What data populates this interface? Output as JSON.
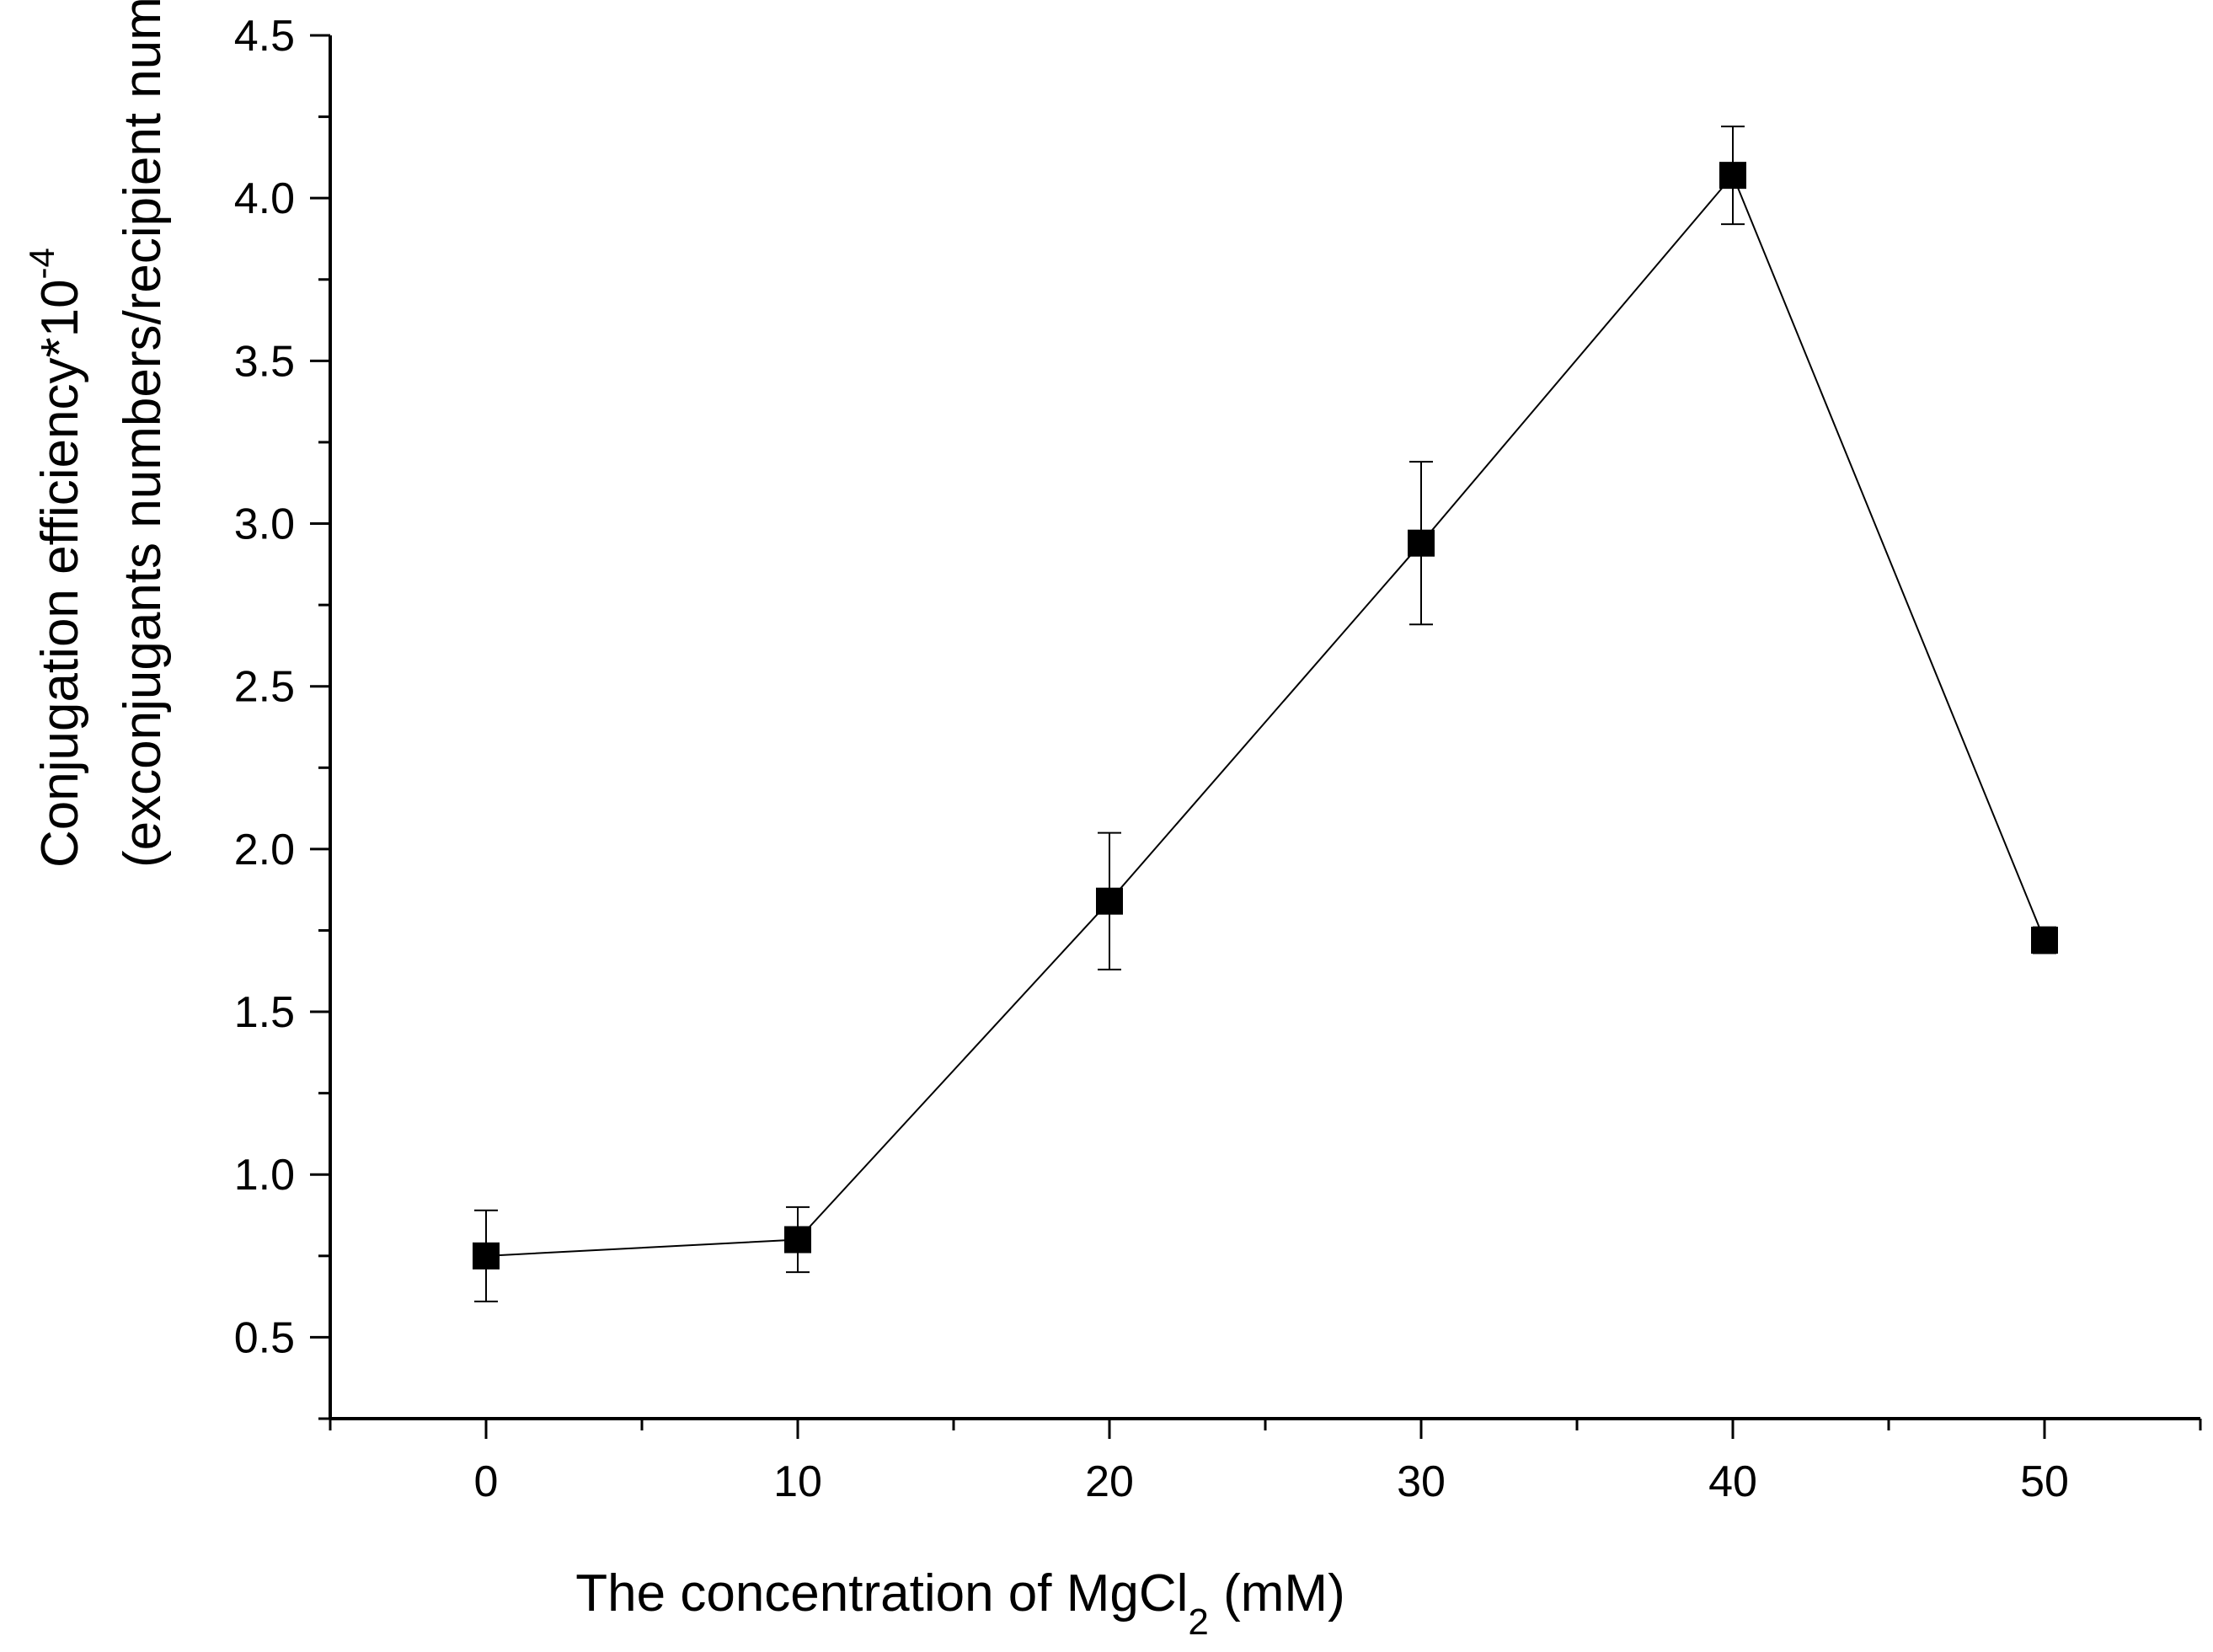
{
  "chart_data": {
    "type": "line",
    "title": "",
    "xlabel": {
      "main": "The concentration of MgCl",
      "subscript": "2",
      "suffix": " (mM)"
    },
    "ylabel": {
      "line1_main": "Conjugation efficiency*10",
      "line1_superscript": "-4",
      "line2": "(exconjugants numbers/recipient numbers)"
    },
    "xlim": [
      -5,
      55
    ],
    "ylim": [
      0.25,
      4.5
    ],
    "x_major_ticks": [
      0,
      10,
      20,
      30,
      40,
      50
    ],
    "x_tick_labels": [
      "0",
      "10",
      "20",
      "30",
      "40",
      "50"
    ],
    "y_major_ticks": [
      0.5,
      1.0,
      1.5,
      2.0,
      2.5,
      3.0,
      3.5,
      4.0,
      4.5
    ],
    "y_tick_labels": [
      "0.5",
      "1.0",
      "1.5",
      "2.0",
      "2.5",
      "3.0",
      "3.5",
      "4.0",
      "4.5"
    ],
    "grid": false,
    "series": [
      {
        "name": "Conjugation efficiency",
        "marker": "square",
        "color": "#000000",
        "x": [
          0,
          10,
          20,
          30,
          40,
          50
        ],
        "y": [
          0.75,
          0.8,
          1.84,
          2.94,
          4.07,
          1.72
        ],
        "error": [
          0.14,
          0.1,
          0.21,
          0.25,
          0.15,
          0.04
        ]
      }
    ]
  }
}
